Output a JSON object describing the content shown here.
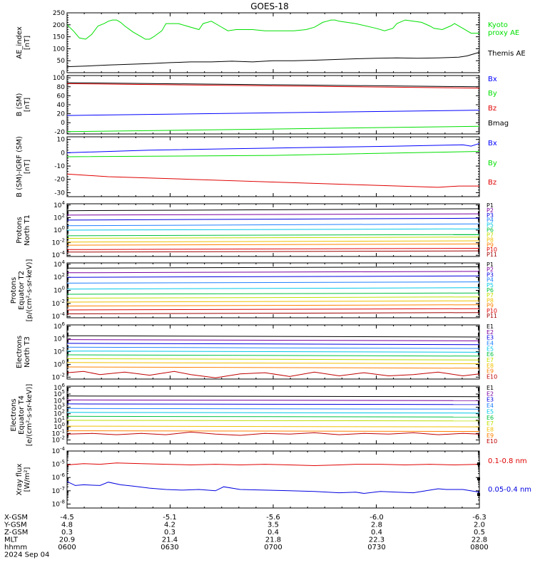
{
  "title": "GOES-18",
  "chart_data": [
    {
      "type": "line",
      "ylabel": [
        "AE_index",
        "[nT]"
      ],
      "yticks": [
        "0",
        "50",
        "100",
        "150",
        "200",
        "250"
      ],
      "ylim": [
        0,
        250
      ],
      "series": [
        {
          "name": "Kyoto proxy AE",
          "label_lines": [
            "Kyoto",
            "proxy AE"
          ],
          "color": "#00e000",
          "x": [
            0,
            1.5,
            3,
            4.5,
            6,
            7.5,
            9,
            10,
            11,
            12,
            13,
            14,
            16,
            18,
            19,
            20,
            21,
            23,
            24,
            27,
            29,
            32,
            33,
            35,
            37,
            39,
            41,
            45,
            48,
            52,
            55,
            58,
            60,
            61,
            62,
            63,
            64,
            65,
            66,
            70,
            75,
            77,
            79,
            80,
            82,
            84,
            86,
            88,
            89,
            91,
            93,
            94,
            96,
            98,
            100
          ],
          "y": [
            200,
            175,
            145,
            140,
            160,
            195,
            205,
            215,
            220,
            220,
            210,
            195,
            170,
            150,
            140,
            140,
            150,
            175,
            205,
            205,
            195,
            180,
            205,
            215,
            195,
            175,
            180,
            180,
            175,
            175,
            175,
            180,
            190,
            200,
            210,
            215,
            220,
            220,
            215,
            205,
            185,
            175,
            185,
            205,
            220,
            215,
            210,
            195,
            185,
            180,
            195,
            205,
            185,
            165,
            165
          ]
        },
        {
          "name": "Themis AE",
          "label_lines": [
            "Themis AE"
          ],
          "color": "#000000",
          "x": [
            0,
            5,
            10,
            15,
            20,
            25,
            30,
            35,
            40,
            45,
            50,
            55,
            60,
            65,
            70,
            75,
            80,
            85,
            90,
            95,
            97,
            100
          ],
          "y": [
            25,
            28,
            32,
            35,
            38,
            42,
            45,
            45,
            48,
            45,
            50,
            50,
            52,
            55,
            58,
            60,
            62,
            60,
            62,
            65,
            70,
            85
          ]
        }
      ]
    },
    {
      "type": "line",
      "ylabel": [
        "B (SM)",
        "[nT]"
      ],
      "yticks": [
        "-20",
        "0",
        "20",
        "40",
        "60",
        "80",
        "100"
      ],
      "ylim": [
        -25,
        105
      ],
      "series": [
        {
          "name": "Bx",
          "color": "#0000ff",
          "x": [
            0,
            100
          ],
          "y": [
            16,
            28
          ]
        },
        {
          "name": "By",
          "color": "#00e000",
          "x": [
            0,
            100
          ],
          "y": [
            -20,
            -8
          ]
        },
        {
          "name": "Bz",
          "color": "#e00000",
          "x": [
            0,
            100
          ],
          "y": [
            87,
            77
          ]
        },
        {
          "name": "Bmag",
          "color": "#000000",
          "x": [
            0,
            100
          ],
          "y": [
            89,
            80
          ]
        }
      ]
    },
    {
      "type": "line",
      "ylabel": [
        "B (SM)-IGRF (SM)",
        "[nT]"
      ],
      "yticks": [
        "-30",
        "-20",
        "-10",
        "0",
        "10"
      ],
      "ylim": [
        -33,
        12
      ],
      "series": [
        {
          "name": "Bx",
          "color": "#0000ff",
          "x": [
            0,
            20,
            40,
            60,
            80,
            96,
            98,
            100
          ],
          "y": [
            0,
            2,
            3,
            4,
            5,
            6,
            5,
            7
          ]
        },
        {
          "name": "By",
          "color": "#00e000",
          "x": [
            0,
            50,
            100
          ],
          "y": [
            -3,
            -2,
            1
          ]
        },
        {
          "name": "Bz",
          "color": "#e00000",
          "x": [
            0,
            10,
            30,
            50,
            70,
            90,
            95,
            100
          ],
          "y": [
            -16,
            -18,
            -20,
            -22,
            -24,
            -26,
            -25,
            -25
          ]
        }
      ]
    },
    {
      "type": "line",
      "log": true,
      "ylabel": [
        "Protons",
        "North T1"
      ],
      "yticks": [
        "10^-4",
        "10^-2",
        "10^0",
        "10^2",
        "10^4"
      ],
      "ylim": [
        -4.2,
        4.2
      ],
      "series": [
        {
          "name": "P1",
          "color": "#000000",
          "x": [
            0,
            100
          ],
          "y": [
            3.1,
            3.4
          ]
        },
        {
          "name": "P2",
          "color": "#7a00a0",
          "x": [
            0,
            100
          ],
          "y": [
            2.4,
            2.6
          ]
        },
        {
          "name": "P3",
          "color": "#0000e0",
          "x": [
            0,
            100
          ],
          "y": [
            1.6,
            1.9
          ]
        },
        {
          "name": "P4",
          "color": "#2080ff",
          "x": [
            0,
            100
          ],
          "y": [
            0.7,
            1.0
          ]
        },
        {
          "name": "P5",
          "color": "#00c8e8",
          "x": [
            0,
            100
          ],
          "y": [
            0.0,
            0.2
          ]
        },
        {
          "name": "P6",
          "color": "#00c040",
          "x": [
            0,
            100
          ],
          "y": [
            -0.9,
            -0.7
          ]
        },
        {
          "name": "P7",
          "color": "#c0e000",
          "x": [
            0,
            100
          ],
          "y": [
            -1.3,
            -1.1
          ]
        },
        {
          "name": "P8",
          "color": "#f0c000",
          "x": [
            0,
            100
          ],
          "y": [
            -1.9,
            -1.7
          ]
        },
        {
          "name": "P9",
          "color": "#ff8000",
          "x": [
            0,
            100
          ],
          "y": [
            -2.4,
            -2.2
          ]
        },
        {
          "name": "P10",
          "color": "#e00000",
          "x": [
            0,
            100
          ],
          "y": [
            -3.1,
            -2.9
          ]
        },
        {
          "name": "P11",
          "color": "#a00000",
          "x": [
            0,
            100
          ],
          "y": [
            -3.5,
            -3.3
          ]
        }
      ]
    },
    {
      "type": "line",
      "log": true,
      "ylabel": [
        "Protons",
        "Equator T2",
        "[p/(cm²-s-sr-keV)]"
      ],
      "yticks": [
        "10^-4",
        "10^-2",
        "10^0",
        "10^2",
        "10^4"
      ],
      "ylim": [
        -4.2,
        4.2
      ],
      "series": [
        {
          "name": "P1",
          "color": "#000000",
          "x": [
            0,
            100
          ],
          "y": [
            3.4,
            3.6
          ]
        },
        {
          "name": "P2",
          "color": "#7a00a0",
          "x": [
            0,
            100
          ],
          "y": [
            2.7,
            2.9
          ]
        },
        {
          "name": "P3",
          "color": "#0000e0",
          "x": [
            0,
            100
          ],
          "y": [
            2.0,
            2.2
          ]
        },
        {
          "name": "P4",
          "color": "#2080ff",
          "x": [
            0,
            100
          ],
          "y": [
            1.1,
            1.3
          ]
        },
        {
          "name": "P5",
          "color": "#00c8e8",
          "x": [
            0,
            100
          ],
          "y": [
            0.2,
            0.4
          ]
        },
        {
          "name": "P6",
          "color": "#00c040",
          "x": [
            0,
            100
          ],
          "y": [
            -0.6,
            -0.4
          ]
        },
        {
          "name": "P7",
          "color": "#c0e000",
          "x": [
            0,
            100
          ],
          "y": [
            -1.2,
            -1.0
          ]
        },
        {
          "name": "P8",
          "color": "#f0c000",
          "x": [
            0,
            100
          ],
          "y": [
            -1.8,
            -1.6
          ]
        },
        {
          "name": "P9",
          "color": "#ff8000",
          "x": [
            0,
            100
          ],
          "y": [
            -2.4,
            -2.2
          ]
        },
        {
          "name": "P10",
          "color": "#e00000",
          "x": [
            0,
            100
          ],
          "y": [
            -3.0,
            -2.8
          ]
        },
        {
          "name": "P11",
          "color": "#a00000",
          "x": [
            0,
            100
          ],
          "y": [
            -3.6,
            -3.4
          ]
        }
      ]
    },
    {
      "type": "line",
      "log": true,
      "ylabel": [
        "Electrons",
        "North T3"
      ],
      "yticks": [
        "10^-2",
        "10^0",
        "10^2",
        "10^4",
        "10^6"
      ],
      "ylim": [
        -2.3,
        6.2
      ],
      "series": [
        {
          "name": "E1",
          "color": "#000000",
          "x": [
            0,
            100
          ],
          "y": [
            4.5,
            4.3
          ]
        },
        {
          "name": "E2",
          "color": "#7a00a0",
          "x": [
            0,
            100
          ],
          "y": [
            3.9,
            3.7
          ]
        },
        {
          "name": "E3",
          "color": "#0000e0",
          "x": [
            0,
            100
          ],
          "y": [
            3.3,
            3.1
          ]
        },
        {
          "name": "E4",
          "color": "#2080ff",
          "x": [
            0,
            100
          ],
          "y": [
            2.7,
            2.5
          ]
        },
        {
          "name": "E5",
          "color": "#00c8e8",
          "x": [
            0,
            100
          ],
          "y": [
            2.1,
            1.9
          ]
        },
        {
          "name": "E6",
          "color": "#00c040",
          "x": [
            0,
            100
          ],
          "y": [
            1.5,
            1.3
          ]
        },
        {
          "name": "E7",
          "color": "#c0e000",
          "x": [
            0,
            100
          ],
          "y": [
            0.9,
            0.7
          ]
        },
        {
          "name": "E8",
          "color": "#f0c000",
          "x": [
            0,
            100
          ],
          "y": [
            0.3,
            0.1
          ]
        },
        {
          "name": "E9",
          "color": "#ff8000",
          "x": [
            0,
            100
          ],
          "y": [
            -0.4,
            -0.6
          ]
        },
        {
          "name": "E10",
          "color": "#c00000",
          "x": [
            0,
            4,
            8,
            14,
            20,
            26,
            30,
            36,
            42,
            48,
            54,
            60,
            66,
            72,
            78,
            84,
            90,
            96,
            100
          ],
          "y": [
            -1.3,
            -1.1,
            -1.6,
            -1.2,
            -1.7,
            -1.1,
            -1.6,
            -2.1,
            -1.5,
            -1.3,
            -1.9,
            -1.2,
            -1.8,
            -1.3,
            -1.8,
            -1.6,
            -1.2,
            -1.8,
            -1.5
          ]
        }
      ]
    },
    {
      "type": "line",
      "log": true,
      "ylabel": [
        "Electrons",
        "Equator T4",
        "[e/(cm²-s-sr-keV)]"
      ],
      "yticks": [
        "10^-2",
        "10^-1",
        "10^0",
        "10^1",
        "10^2",
        "10^3",
        "10^4",
        "10^5",
        "10^6"
      ],
      "ylim": [
        -2.6,
        6.2
      ],
      "series": [
        {
          "name": "E1",
          "color": "#000000",
          "x": [
            0,
            100
          ],
          "y": [
            4.7,
            4.6
          ]
        },
        {
          "name": "E2",
          "color": "#7a00a0",
          "x": [
            0,
            100
          ],
          "y": [
            4.1,
            4.0
          ]
        },
        {
          "name": "E3",
          "color": "#0000e0",
          "x": [
            0,
            100
          ],
          "y": [
            3.5,
            3.4
          ]
        },
        {
          "name": "E4",
          "color": "#2080ff",
          "x": [
            0,
            100
          ],
          "y": [
            2.8,
            2.7
          ]
        },
        {
          "name": "E5",
          "color": "#00c8e8",
          "x": [
            0,
            100
          ],
          "y": [
            2.2,
            2.1
          ]
        },
        {
          "name": "E6",
          "color": "#00c040",
          "x": [
            0,
            100
          ],
          "y": [
            1.6,
            1.5
          ]
        },
        {
          "name": "E7",
          "color": "#c0e000",
          "x": [
            0,
            100
          ],
          "y": [
            1.0,
            0.9
          ]
        },
        {
          "name": "E8",
          "color": "#f0c000",
          "x": [
            0,
            100
          ],
          "y": [
            0.1,
            0.0
          ]
        },
        {
          "name": "E9",
          "color": "#ff8000",
          "x": [
            0,
            100
          ],
          "y": [
            -0.6,
            -0.7
          ]
        },
        {
          "name": "E10",
          "color": "#c00000",
          "x": [
            0,
            6,
            12,
            18,
            24,
            30,
            36,
            42,
            48,
            54,
            60,
            66,
            72,
            78,
            84,
            90,
            96,
            100
          ],
          "y": [
            -1.1,
            -1.0,
            -1.2,
            -1.0,
            -1.2,
            -0.8,
            -1.1,
            -1.3,
            -1.0,
            -1.1,
            -0.9,
            -1.2,
            -1.0,
            -1.1,
            -0.9,
            -1.2,
            -1.0,
            -1.1
          ]
        }
      ]
    },
    {
      "type": "line",
      "log": true,
      "ylabel": [
        "Xray flux",
        "[W/m²]"
      ],
      "yticks": [
        "10^-8",
        "10^-7",
        "10^-6",
        "10^-5",
        "10^-4"
      ],
      "ylim": [
        -8.3,
        -4
      ],
      "series": [
        {
          "name": "0.1-0.8 nm",
          "color": "#e00000",
          "x": [
            0,
            4,
            8,
            12,
            18,
            24,
            30,
            36,
            42,
            48,
            54,
            60,
            66,
            70,
            76,
            82,
            88,
            94,
            100
          ],
          "y": [
            -5.05,
            -4.95,
            -5.0,
            -4.9,
            -4.95,
            -5.0,
            -5.05,
            -5.0,
            -5.05,
            -5.0,
            -5.05,
            -5.1,
            -5.05,
            -5.0,
            -5.0,
            -5.05,
            -5.0,
            -5.05,
            -5.0
          ]
        },
        {
          "name": "0.05-0.4 nm",
          "color": "#0000e0",
          "x": [
            0,
            2,
            4,
            8,
            10,
            13,
            16,
            20,
            24,
            28,
            32,
            36,
            38,
            42,
            48,
            54,
            60,
            66,
            70,
            72,
            76,
            80,
            84,
            86,
            88,
            90,
            92,
            96,
            100
          ],
          "y": [
            -6.3,
            -6.6,
            -6.55,
            -6.6,
            -6.35,
            -6.55,
            -6.65,
            -6.8,
            -6.9,
            -6.95,
            -6.9,
            -7.0,
            -6.7,
            -6.9,
            -6.95,
            -7.0,
            -7.05,
            -7.15,
            -7.1,
            -7.2,
            -7.05,
            -7.1,
            -7.15,
            -7.05,
            -6.95,
            -6.85,
            -6.9,
            -6.9,
            -7.1
          ]
        }
      ]
    }
  ],
  "footer": {
    "rows": [
      {
        "label": "X-GSM",
        "values": [
          "-4.5",
          "-5.1",
          "-5.6",
          "-6.0",
          "-6.3"
        ]
      },
      {
        "label": "Y-GSM",
        "values": [
          "4.8",
          "4.2",
          "3.5",
          "2.8",
          "2.0"
        ]
      },
      {
        "label": "Z-GSM",
        "values": [
          "0.3",
          "0.3",
          "0.4",
          "0.4",
          "0.5"
        ]
      },
      {
        "label": "MLT",
        "values": [
          "20.9",
          "21.4",
          "21.8",
          "22.3",
          "22.8"
        ]
      },
      {
        "label": "hhmm",
        "values": [
          "0600",
          "0630",
          "0700",
          "0730",
          "0800"
        ]
      }
    ],
    "date": "2024 Sep 04"
  }
}
